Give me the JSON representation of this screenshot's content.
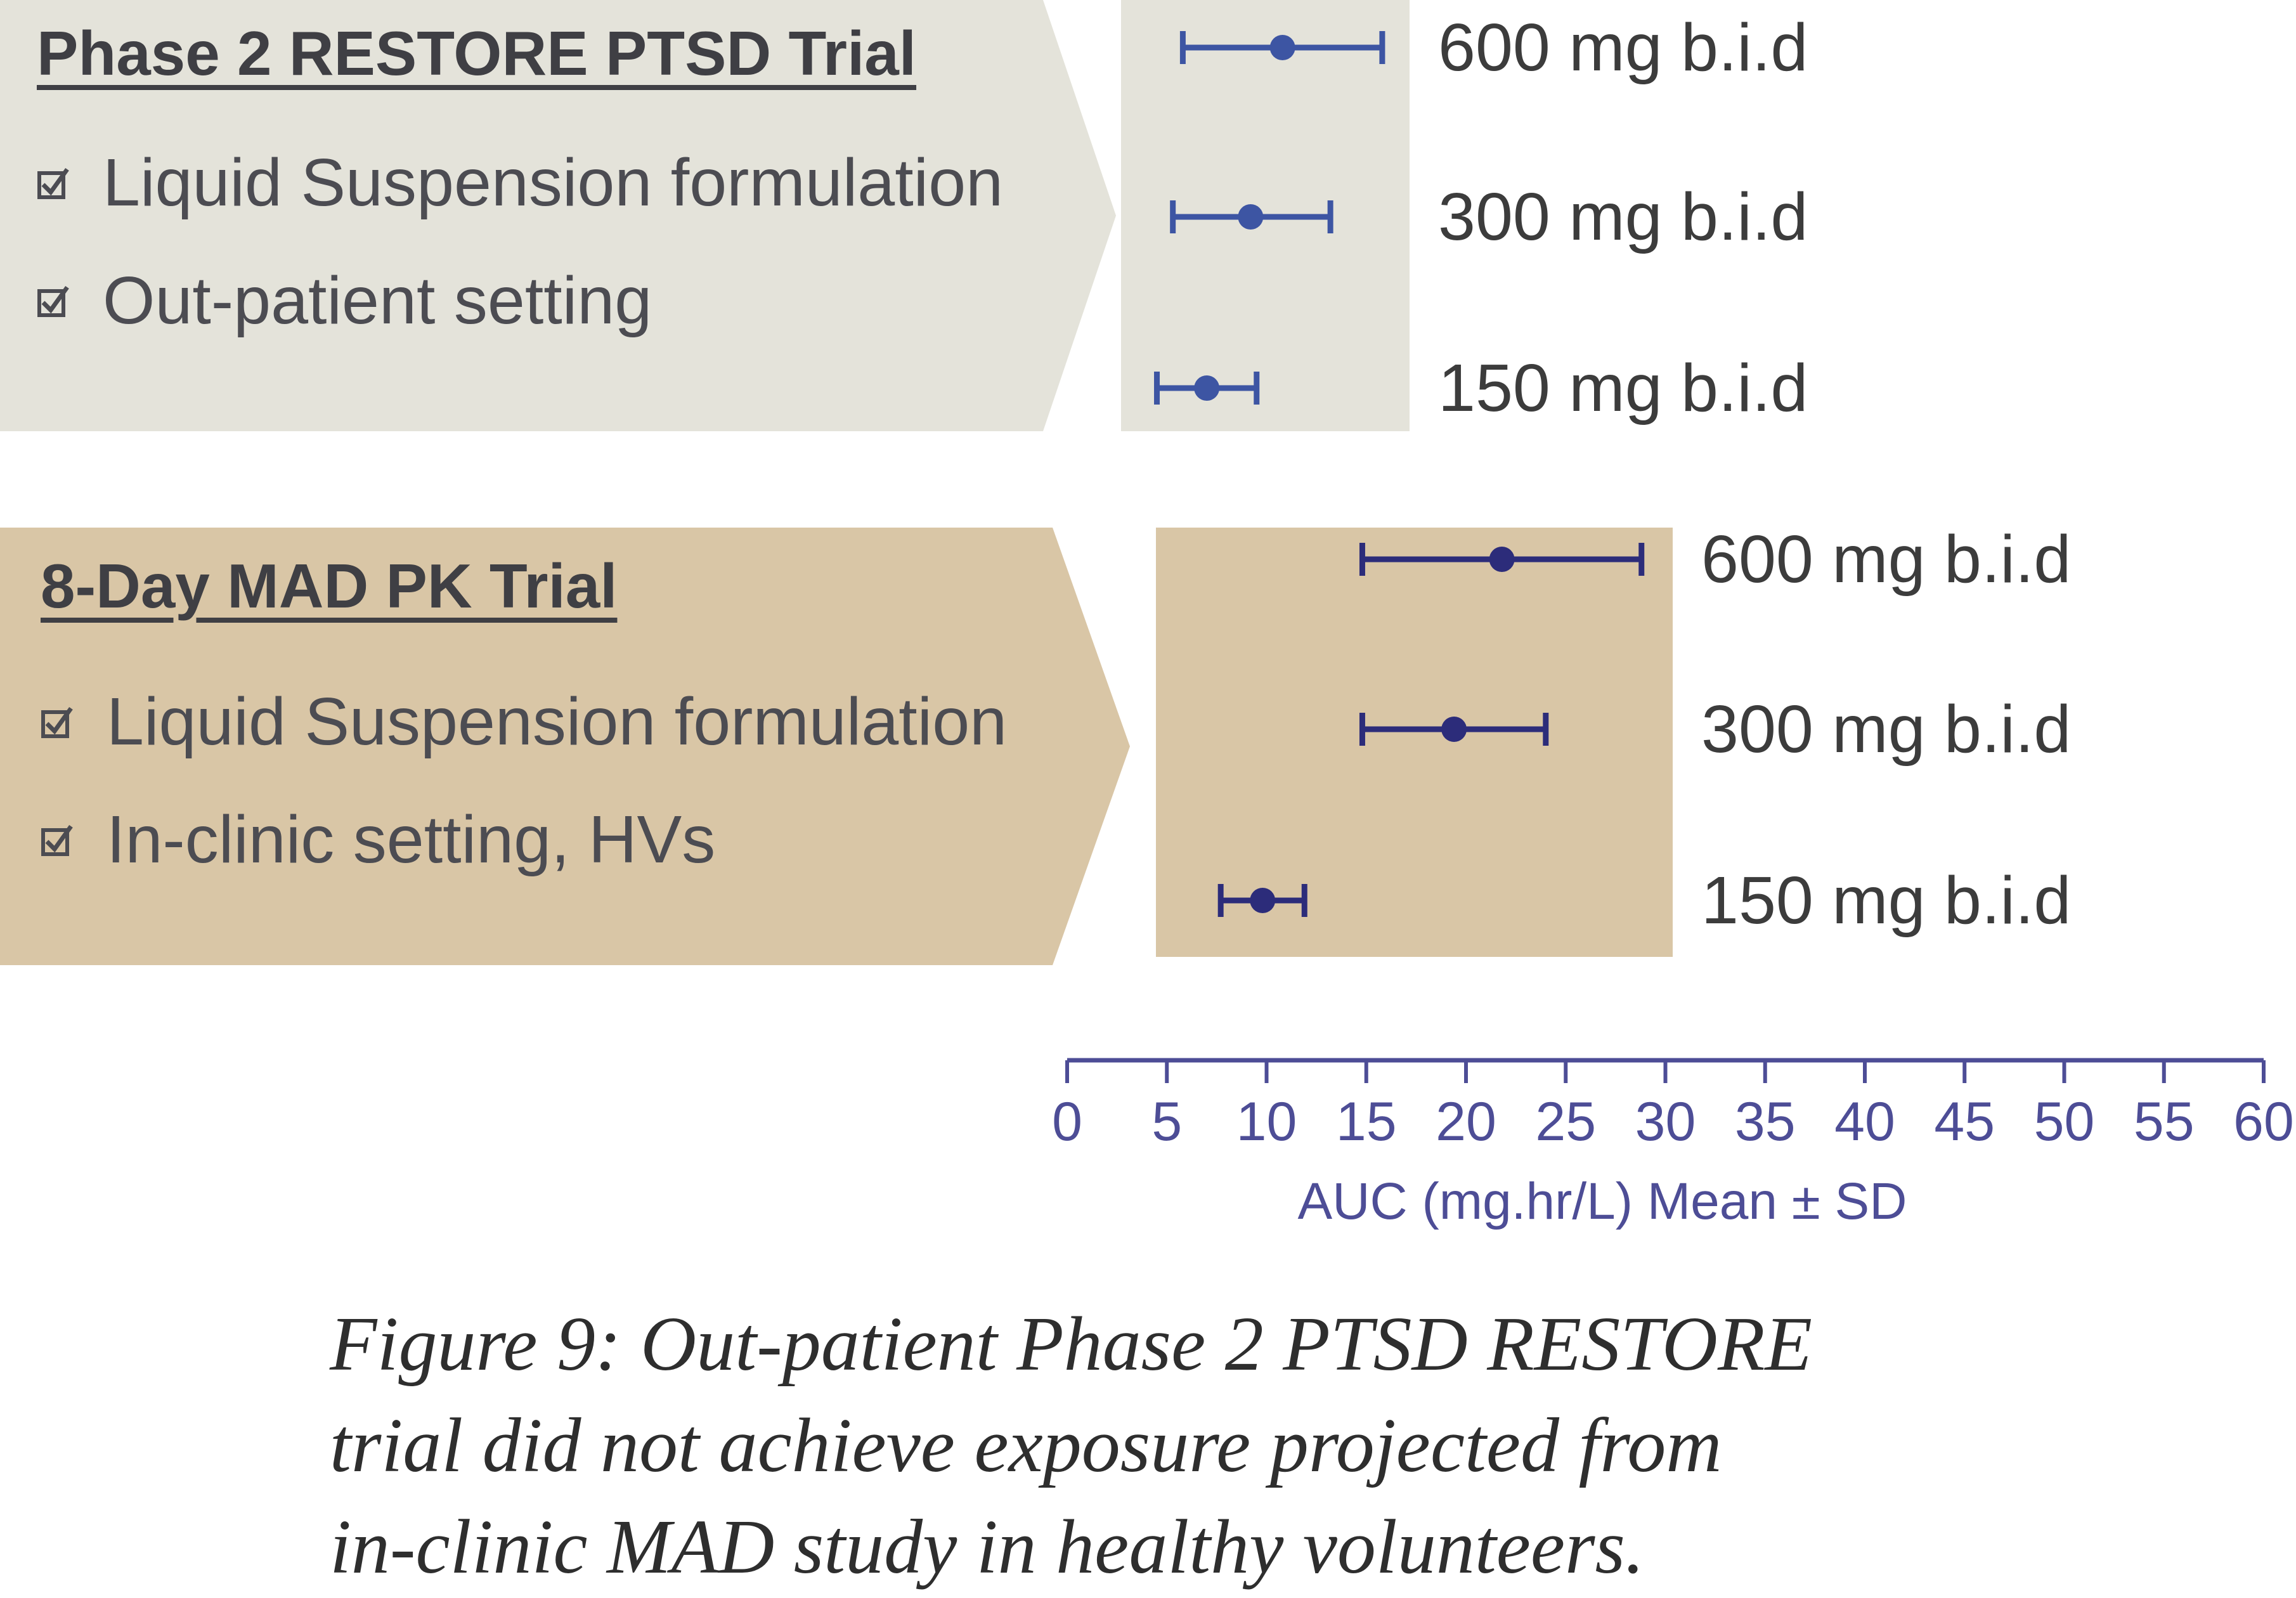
{
  "panels": [
    {
      "title": "Phase 2 RESTORE PTSD Trial",
      "bullets": [
        "Liquid Suspension formulation",
        "Out-patient setting"
      ],
      "fill": "#e4e3da"
    },
    {
      "title": "8-Day MAD PK Trial",
      "bullets": [
        "Liquid Suspension formulation",
        "In-clinic setting, HVs"
      ],
      "fill": "#d9c6a6"
    }
  ],
  "chart_data": {
    "type": "scatter",
    "subtype": "dot-with-error-bars",
    "xlabel": "AUC (mg.hr/L) Mean ± SD",
    "xlim": [
      0,
      60
    ],
    "xticks": [
      0,
      5,
      10,
      15,
      20,
      25,
      30,
      35,
      40,
      45,
      50,
      55,
      60
    ],
    "colors": {
      "phase2": "#3d55a3",
      "mad": "#2c2c7a",
      "axis": "#4d4d96"
    },
    "series": [
      {
        "name": "Phase 2 RESTORE PTSD Trial",
        "points": [
          {
            "label": "600 mg b.i.d",
            "mean": 10.8,
            "low": 5.8,
            "high": 15.8
          },
          {
            "label": "300 mg b.i.d",
            "mean": 9.2,
            "low": 5.3,
            "high": 13.2
          },
          {
            "label": "150 mg b.i.d",
            "mean": 7.0,
            "low": 4.5,
            "high": 9.5
          }
        ]
      },
      {
        "name": "8-Day MAD PK Trial",
        "points": [
          {
            "label": "600 mg b.i.d",
            "mean": 21.8,
            "low": 14.8,
            "high": 28.8
          },
          {
            "label": "300 mg b.i.d",
            "mean": 19.4,
            "low": 14.8,
            "high": 24.0
          },
          {
            "label": "150 mg b.i.d",
            "mean": 9.8,
            "low": 7.7,
            "high": 11.9
          }
        ]
      }
    ]
  },
  "caption": {
    "lines": [
      "Figure 9: Out-patient Phase 2 PTSD RESTORE",
      "trial did not achieve exposure projected from",
      "in-clinic MAD study in healthy volunteers."
    ]
  }
}
